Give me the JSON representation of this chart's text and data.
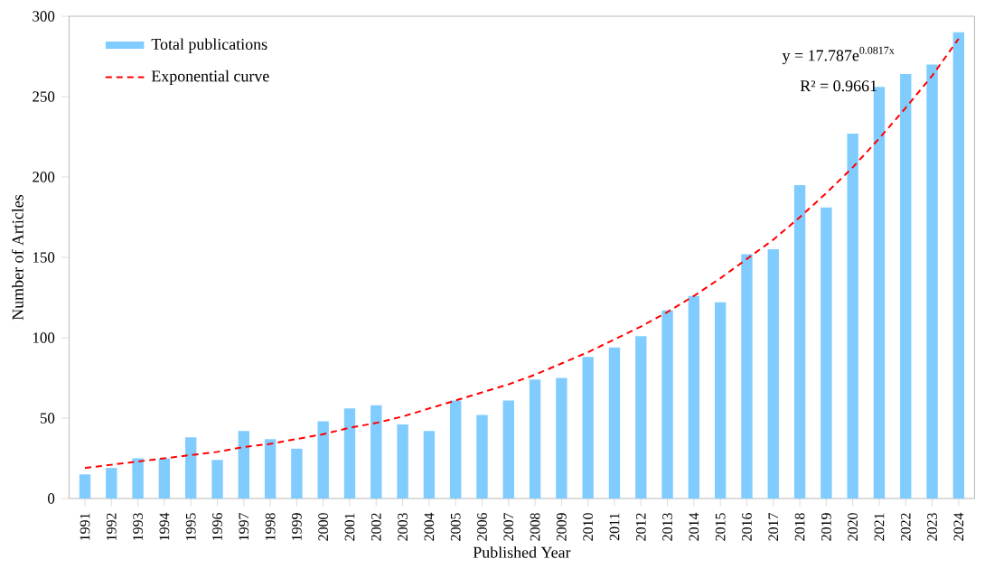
{
  "chart_data": {
    "type": "bar",
    "xlabel": "Published Year",
    "ylabel": "Number of Articles",
    "categories": [
      "1991",
      "1992",
      "1993",
      "1994",
      "1995",
      "1996",
      "1997",
      "1998",
      "1999",
      "2000",
      "2001",
      "2002",
      "2003",
      "2004",
      "2005",
      "2006",
      "2007",
      "2008",
      "2009",
      "2010",
      "2011",
      "2012",
      "2013",
      "2014",
      "2015",
      "2016",
      "2017",
      "2018",
      "2019",
      "2020",
      "2021",
      "2022",
      "2023",
      "2024"
    ],
    "series": [
      {
        "name": "Total publications",
        "color": "#80ccff",
        "values": [
          15,
          19,
          25,
          25,
          38,
          24,
          42,
          37,
          31,
          48,
          56,
          58,
          46,
          42,
          61,
          52,
          61,
          74,
          75,
          88,
          94,
          101,
          117,
          126,
          122,
          152,
          155,
          195,
          181,
          227,
          256,
          264,
          270,
          290
        ]
      },
      {
        "name": "Exponential curve",
        "type": "line",
        "line_style": "dashed",
        "color": "#ff0000",
        "values": [
          19,
          21,
          23,
          25,
          27,
          29,
          32,
          34,
          37,
          40,
          44,
          47,
          51,
          56,
          61,
          66,
          71,
          77,
          84,
          91,
          99,
          107,
          116,
          126,
          137,
          149,
          161,
          175,
          190,
          206,
          224,
          243,
          263,
          286
        ]
      }
    ],
    "ylim": [
      0,
      300
    ],
    "yticks": [
      0,
      50,
      100,
      150,
      200,
      250,
      300
    ],
    "legend": "top left",
    "annotations": [
      "y = 17.787e$^{0.0817x}$",
      "R² = 0.9661"
    ]
  }
}
